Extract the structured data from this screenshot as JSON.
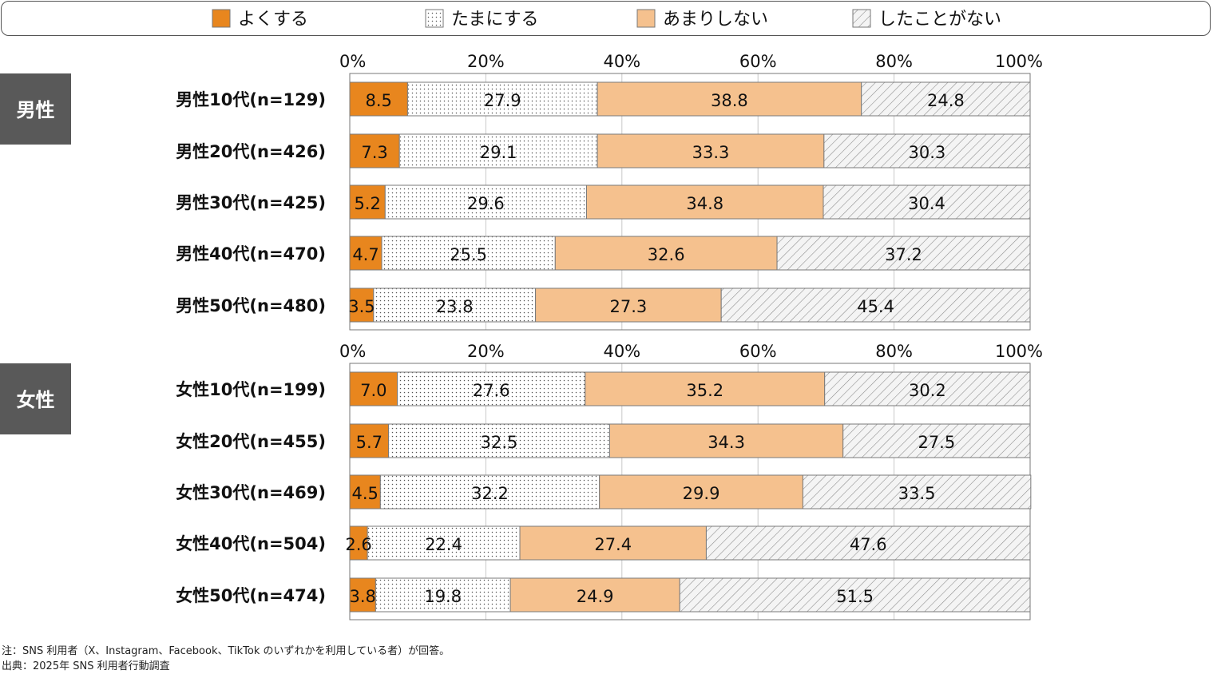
{
  "chart_data": {
    "type": "bar",
    "stacked": true,
    "orientation": "horizontal",
    "unit": "%",
    "xlim": [
      0,
      100
    ],
    "x_ticks": [
      "0%",
      "20%",
      "40%",
      "60%",
      "80%",
      "100%"
    ],
    "legend_position": "top",
    "series": [
      {
        "name": "よくする",
        "color": "#e8861e",
        "pattern": "solid"
      },
      {
        "name": "たまにする",
        "color": "#ffffff",
        "pattern": "dots"
      },
      {
        "name": "あまりしない",
        "color": "#f5c18e",
        "pattern": "solid"
      },
      {
        "name": "したことがない",
        "color": "#ffffff",
        "pattern": "diagonal-hatch"
      }
    ],
    "groups": [
      {
        "label": "男性",
        "rows": [
          {
            "label": "男性10代(n=129)",
            "values": [
              8.5,
              27.9,
              38.8,
              24.8
            ]
          },
          {
            "label": "男性20代(n=426)",
            "values": [
              7.3,
              29.1,
              33.3,
              30.3
            ]
          },
          {
            "label": "男性30代(n=425)",
            "values": [
              5.2,
              29.6,
              34.8,
              30.4
            ]
          },
          {
            "label": "男性40代(n=470)",
            "values": [
              4.7,
              25.5,
              32.6,
              37.2
            ]
          },
          {
            "label": "男性50代(n=480)",
            "values": [
              3.5,
              23.8,
              27.3,
              45.4
            ]
          }
        ]
      },
      {
        "label": "女性",
        "rows": [
          {
            "label": "女性10代(n=199)",
            "values": [
              7.0,
              27.6,
              35.2,
              30.2
            ]
          },
          {
            "label": "女性20代(n=455)",
            "values": [
              5.7,
              32.5,
              34.3,
              27.5
            ]
          },
          {
            "label": "女性30代(n=469)",
            "values": [
              4.5,
              32.2,
              29.9,
              33.5
            ]
          },
          {
            "label": "女性40代(n=504)",
            "values": [
              2.6,
              22.4,
              27.4,
              47.6
            ]
          },
          {
            "label": "女性50代(n=474)",
            "values": [
              3.8,
              19.8,
              24.9,
              51.5
            ]
          }
        ]
      }
    ]
  },
  "notes": {
    "note": "注：SNS 利用者（X、Instagram、Facebook、TikTok のいずれかを利用している者）が回答。",
    "source": "出典：2025年 SNS 利用者行動調査"
  }
}
